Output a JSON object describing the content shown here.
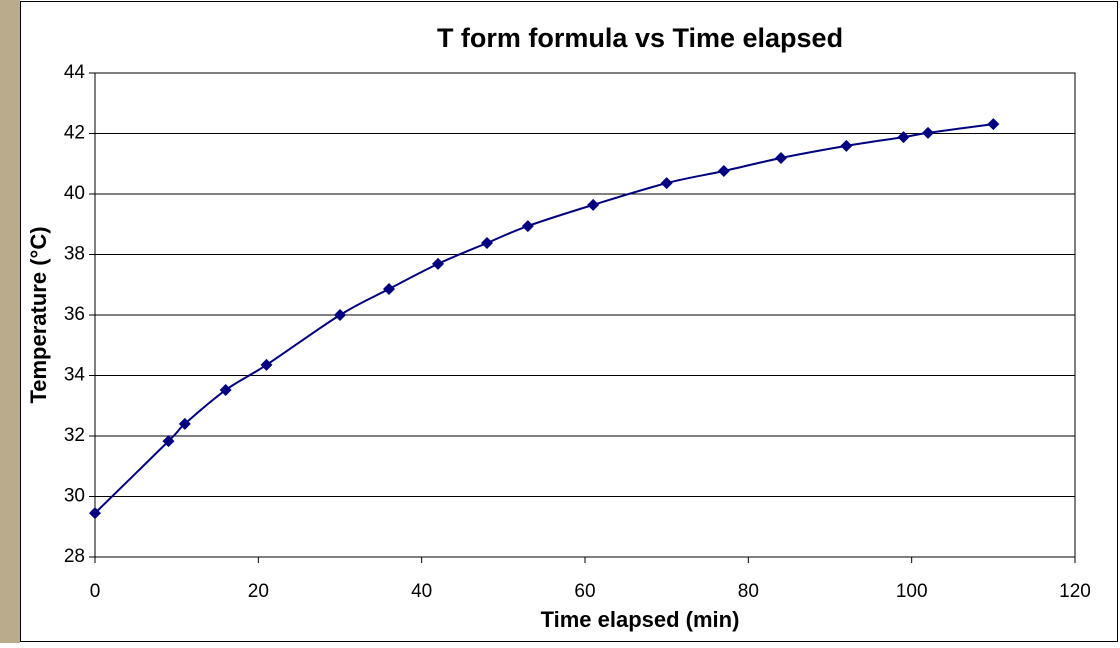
{
  "chart_data": {
    "type": "line",
    "title": "T form formula vs Time elapsed",
    "x_label": "Time elapsed (min)",
    "y_label": "Temperature (°C)",
    "x": [
      0,
      9,
      11,
      16,
      21,
      30,
      36,
      42,
      48,
      53,
      61,
      70,
      77,
      84,
      92,
      99,
      102,
      110
    ],
    "series": [
      {
        "color": "#000080",
        "values": [
          29.45,
          31.83,
          32.4,
          33.52,
          34.35,
          36.0,
          36.86,
          37.69,
          38.38,
          38.94,
          39.64,
          40.36,
          40.76,
          41.19,
          41.59,
          41.88,
          42.02,
          42.31
        ]
      }
    ],
    "xlim": [
      0,
      120
    ],
    "xticks": [
      0,
      20,
      40,
      60,
      80,
      100,
      120
    ],
    "ylim": [
      28,
      44
    ],
    "yticks": [
      28,
      30,
      32,
      34,
      36,
      38,
      40,
      42,
      44
    ],
    "grid": true
  }
}
